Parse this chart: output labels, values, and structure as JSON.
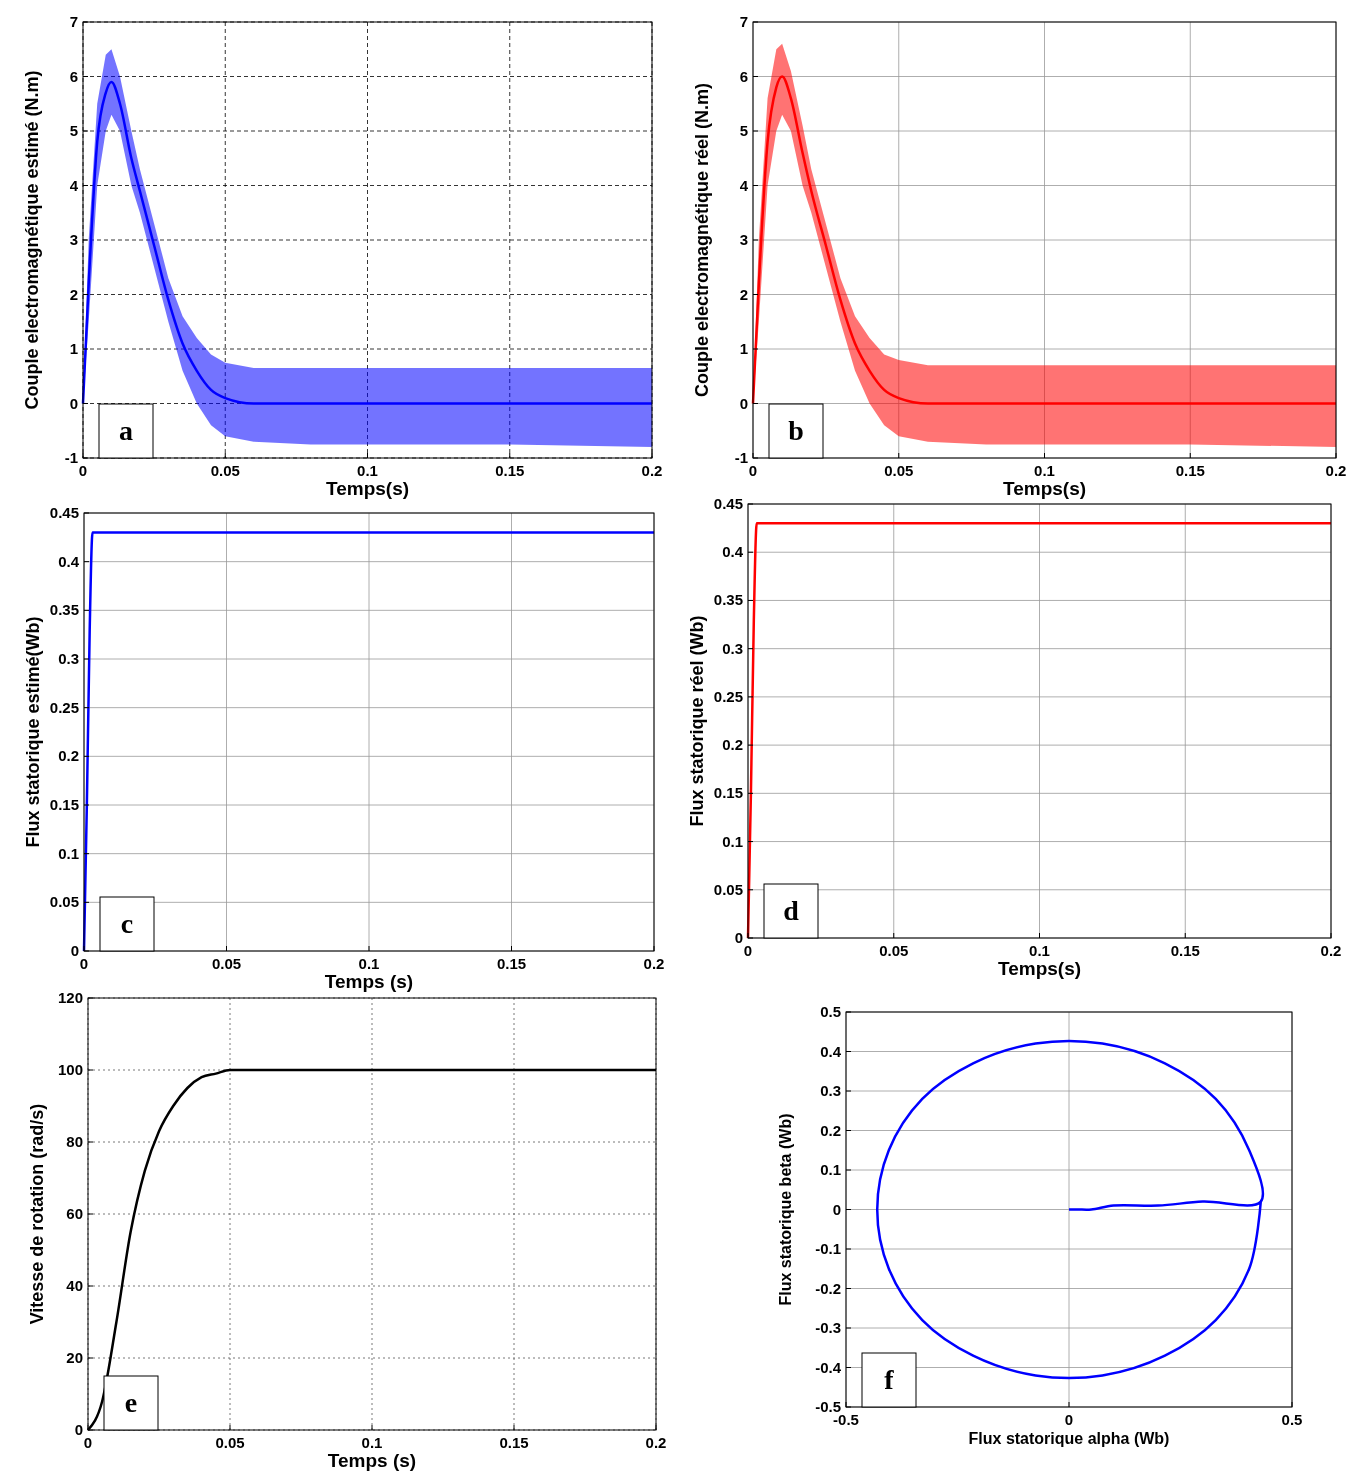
{
  "chart_data": [
    {
      "type": "line",
      "xlabel": "Temps(s)",
      "ylabel": "Couple electromagnétique estimé (N.m)",
      "xlim": [
        0,
        0.2
      ],
      "xticks": [
        0,
        0.05,
        0.1,
        0.15,
        0.2
      ],
      "ylim": [
        -1,
        7
      ],
      "yticks": [
        -1,
        0,
        1,
        2,
        3,
        4,
        5,
        6,
        7
      ],
      "grid": true,
      "annotations": [
        "a"
      ],
      "series": [
        {
          "color": "#0000ff",
          "x": [
            0,
            0.002,
            0.005,
            0.008,
            0.01,
            0.013,
            0.017,
            0.02,
            0.025,
            0.03,
            0.035,
            0.04,
            0.045,
            0.05,
            0.06,
            0.08,
            0.1,
            0.15,
            0.2
          ],
          "values": [
            0,
            2.2,
            4.8,
            5.7,
            5.9,
            5.5,
            4.5,
            3.9,
            2.9,
            1.9,
            1.1,
            0.6,
            0.25,
            0.1,
            0,
            0,
            0,
            0,
            0
          ],
          "lower": [
            0,
            1.5,
            4,
            5,
            5.3,
            5,
            4,
            3.5,
            2.5,
            1.5,
            0.6,
            0,
            -0.4,
            -0.6,
            -0.7,
            -0.75,
            -0.75,
            -0.75,
            -0.8
          ],
          "upper": [
            0,
            3,
            5.5,
            6.4,
            6.5,
            6,
            5,
            4.3,
            3.3,
            2.3,
            1.6,
            1.2,
            0.9,
            0.75,
            0.65,
            0.65,
            0.65,
            0.65,
            0.65
          ]
        }
      ]
    },
    {
      "type": "line",
      "xlabel": "Temps(s)",
      "ylabel": "Couple electromagnétique réel (N.m)",
      "xlim": [
        0,
        0.2
      ],
      "xticks": [
        0,
        0.05,
        0.1,
        0.15,
        0.2
      ],
      "ylim": [
        -1,
        7
      ],
      "yticks": [
        -1,
        0,
        1,
        2,
        3,
        4,
        5,
        6,
        7
      ],
      "grid": true,
      "annotations": [
        "b"
      ],
      "series": [
        {
          "color": "#ff0000",
          "x": [
            0,
            0.002,
            0.005,
            0.008,
            0.01,
            0.013,
            0.017,
            0.02,
            0.025,
            0.03,
            0.035,
            0.04,
            0.045,
            0.05,
            0.06,
            0.08,
            0.1,
            0.15,
            0.2
          ],
          "values": [
            0,
            2.2,
            4.8,
            5.8,
            6,
            5.6,
            4.6,
            3.9,
            2.9,
            1.9,
            1.1,
            0.6,
            0.25,
            0.1,
            0,
            0,
            0,
            0,
            0
          ],
          "lower": [
            0,
            1.5,
            4,
            5,
            5.3,
            5,
            4,
            3.5,
            2.5,
            1.5,
            0.6,
            0,
            -0.4,
            -0.6,
            -0.7,
            -0.75,
            -0.75,
            -0.75,
            -0.8
          ],
          "upper": [
            0,
            3,
            5.6,
            6.5,
            6.6,
            6.1,
            5.1,
            4.3,
            3.3,
            2.3,
            1.6,
            1.2,
            0.9,
            0.8,
            0.7,
            0.7,
            0.7,
            0.7,
            0.7
          ]
        }
      ]
    },
    {
      "type": "line",
      "xlabel": "Temps (s)",
      "ylabel": "Flux statorique estimé(Wb)",
      "xlim": [
        0,
        0.2
      ],
      "xticks": [
        0,
        0.05,
        0.1,
        0.15,
        0.2
      ],
      "ylim": [
        0,
        0.45
      ],
      "yticks": [
        0,
        0.05,
        0.1,
        0.15,
        0.2,
        0.25,
        0.3,
        0.35,
        0.4,
        0.45
      ],
      "grid": true,
      "annotations": [
        "c"
      ],
      "series": [
        {
          "color": "#0000ff",
          "x": [
            0,
            0.001,
            0.002,
            0.003,
            0.05,
            0.1,
            0.15,
            0.2
          ],
          "values": [
            0,
            0.15,
            0.33,
            0.43,
            0.43,
            0.43,
            0.43,
            0.43
          ]
        }
      ]
    },
    {
      "type": "line",
      "xlabel": "Temps(s)",
      "ylabel": "Flux statorique réel (Wb)",
      "xlim": [
        0,
        0.2
      ],
      "xticks": [
        0,
        0.05,
        0.1,
        0.15,
        0.2
      ],
      "ylim": [
        0,
        0.45
      ],
      "yticks": [
        0,
        0.05,
        0.1,
        0.15,
        0.2,
        0.25,
        0.3,
        0.35,
        0.4,
        0.45
      ],
      "grid": true,
      "annotations": [
        "d"
      ],
      "series": [
        {
          "color": "#ff0000",
          "x": [
            0,
            0.001,
            0.002,
            0.003,
            0.05,
            0.1,
            0.15,
            0.2
          ],
          "values": [
            0,
            0.15,
            0.33,
            0.43,
            0.43,
            0.43,
            0.43,
            0.43
          ]
        }
      ]
    },
    {
      "type": "line",
      "xlabel": "Temps (s)",
      "ylabel": "Vitesse de rotation (rad/s)",
      "xlim": [
        0,
        0.2
      ],
      "xticks": [
        0,
        0.05,
        0.1,
        0.15,
        0.2
      ],
      "ylim": [
        0,
        120
      ],
      "yticks": [
        0,
        20,
        40,
        60,
        80,
        100,
        120
      ],
      "grid": true,
      "annotations": [
        "e"
      ],
      "series": [
        {
          "color": "#000000",
          "x": [
            0,
            0.005,
            0.01,
            0.015,
            0.02,
            0.025,
            0.03,
            0.035,
            0.04,
            0.045,
            0.05,
            0.06,
            0.1,
            0.15,
            0.2
          ],
          "values": [
            0,
            8,
            30,
            55,
            72,
            83,
            90,
            95,
            98,
            99,
            100,
            100,
            100,
            100,
            100
          ]
        }
      ]
    },
    {
      "type": "line",
      "xlabel": "Flux statorique alpha (Wb)",
      "ylabel": "Flux statorique beta (Wb)",
      "xlim": [
        -0.5,
        0.5
      ],
      "xticks": [
        -0.5,
        0,
        0.5
      ],
      "ylim": [
        -0.5,
        0.5
      ],
      "yticks": [
        -0.5,
        -0.4,
        -0.3,
        -0.2,
        -0.1,
        0,
        0.1,
        0.2,
        0.3,
        0.4,
        0.5
      ],
      "grid": true,
      "annotations": [
        "f"
      ],
      "series": [
        {
          "color": "#0000ff",
          "x": [
            0,
            0.02,
            0.05,
            0.1,
            0.2,
            0.3,
            0.43,
            0.404,
            0.329,
            0.215,
            0.075,
            -0.075,
            -0.215,
            -0.329,
            -0.404,
            -0.43,
            -0.404,
            -0.329,
            -0.215,
            -0.075,
            0.075,
            0.215,
            0.329,
            0.404,
            0.43
          ],
          "values": [
            0,
            0,
            0,
            0.01,
            0.01,
            0.02,
            0.02,
            0.15,
            0.28,
            0.37,
            0.42,
            0.42,
            0.37,
            0.28,
            0.15,
            0,
            -0.15,
            -0.28,
            -0.37,
            -0.42,
            -0.42,
            -0.37,
            -0.28,
            -0.15,
            0.02
          ]
        }
      ]
    }
  ]
}
